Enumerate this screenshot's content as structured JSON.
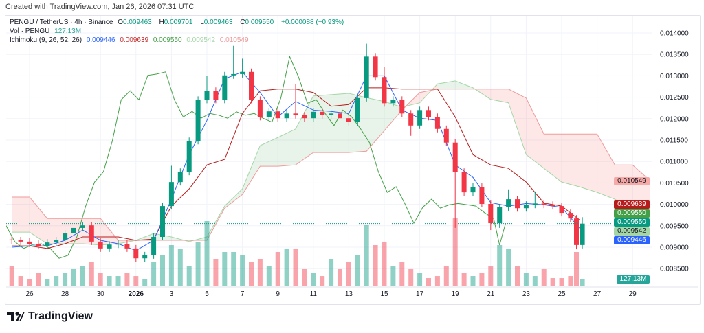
{
  "header": {
    "created": "Created with TradingView.com, Jan 26, 2026 07:31 UTC"
  },
  "legend": {
    "symbol": "PENGU / TetherUS · 4h · Binance",
    "o_label": "O",
    "o": "0.009463",
    "h_label": "H",
    "h": "0.009701",
    "l_label": "L",
    "l": "0.009463",
    "c_label": "C",
    "c": "0.009550",
    "change": "+0.000088 (+0.93%)",
    "vol_label": "Vol · PENGU",
    "vol": "127.13M",
    "ichimoku_label": "Ichimoku (9, 26, 52, 26)",
    "ichimoku_values": [
      "0.009446",
      "0.009639",
      "0.009550",
      "0.009542",
      "0.010549"
    ]
  },
  "footer": {
    "brand": "TradingView"
  },
  "colors": {
    "up": "#089981",
    "down": "#f23645",
    "tenkan": "#2962ff",
    "kijun": "#b71c1c",
    "chikou": "#43a047",
    "span_a": "#a5d6a7",
    "span_b": "#ef9a9a"
  },
  "chart_data": {
    "type": "candlestick",
    "title": "PENGU / TetherUS · 4h · Binance",
    "ylim": [
      0.0082,
      0.0142
    ],
    "y_ticks": [
      "0.014000",
      "0.013500",
      "0.013000",
      "0.012500",
      "0.012000",
      "0.011500",
      "0.011000",
      "0.010500",
      "0.010000",
      "0.009500",
      "0.009000",
      "0.008500"
    ],
    "x_ticks": [
      [
        "2025-12-26",
        "26"
      ],
      [
        "2025-12-28",
        "28"
      ],
      [
        "2025-12-30",
        "30"
      ],
      [
        "2026-01-01",
        "2026"
      ],
      [
        "2026-01-03",
        "3"
      ],
      [
        "2026-01-05",
        "5"
      ],
      [
        "2026-01-07",
        "7"
      ],
      [
        "2026-01-09",
        "9"
      ],
      [
        "2026-01-11",
        "11"
      ],
      [
        "2026-01-13",
        "13"
      ],
      [
        "2026-01-15",
        "15"
      ],
      [
        "2026-01-17",
        "17"
      ],
      [
        "2026-01-19",
        "19"
      ],
      [
        "2026-01-21",
        "21"
      ],
      [
        "2026-01-23",
        "23"
      ],
      [
        "2026-01-25",
        "25"
      ],
      [
        "2026-01-27",
        "27"
      ],
      [
        "2026-01-29",
        "29"
      ]
    ],
    "grid": true,
    "first_open": 0.00918,
    "candles": [
      {
        "t": "2025-12-25T00",
        "c": 0.00916,
        "v": 381
      },
      {
        "t": "2025-12-25T12",
        "c": 0.00913,
        "v": 190
      },
      {
        "t": "2025-12-26T00",
        "c": 0.00908,
        "v": 127
      },
      {
        "t": "2025-12-26T12",
        "c": 0.00903,
        "v": 254
      },
      {
        "t": "2025-12-27T00",
        "c": 0.00911,
        "v": 127
      },
      {
        "t": "2025-12-27T12",
        "c": 0.00916,
        "v": 190
      },
      {
        "t": "2025-12-28T00",
        "c": 0.00932,
        "v": 254
      },
      {
        "t": "2025-12-28T12",
        "c": 0.00945,
        "v": 318
      },
      {
        "t": "2025-12-29T00",
        "c": 0.00951,
        "v": 381
      },
      {
        "t": "2025-12-29T12",
        "c": 0.00913,
        "v": 445
      },
      {
        "t": "2025-12-30T00",
        "c": 0.00897,
        "v": 254
      },
      {
        "t": "2025-12-30T12",
        "c": 0.00906,
        "v": 190
      },
      {
        "t": "2025-12-31T00",
        "c": 0.00908,
        "v": 190
      },
      {
        "t": "2025-12-31T12",
        "c": 0.00897,
        "v": 254
      },
      {
        "t": "2026-01-01T00",
        "c": 0.00874,
        "v": 190
      },
      {
        "t": "2026-01-01T12",
        "c": 0.00881,
        "v": 127
      },
      {
        "t": "2026-01-02T00",
        "c": 0.00924,
        "v": 445
      },
      {
        "t": "2026-01-02T12",
        "c": 0.00996,
        "v": 572
      },
      {
        "t": "2026-01-03T00",
        "c": 0.01052,
        "h": 0.0109,
        "v": 762
      },
      {
        "t": "2026-01-03T12",
        "c": 0.01076,
        "v": 699
      },
      {
        "t": "2026-01-04T00",
        "c": 0.01148,
        "v": 381
      },
      {
        "t": "2026-01-04T12",
        "c": 0.01244,
        "v": 826
      },
      {
        "t": "2026-01-05T00",
        "c": 0.01265,
        "h": 0.013,
        "v": 1207
      },
      {
        "t": "2026-01-05T12",
        "c": 0.01244,
        "v": 508
      },
      {
        "t": "2026-01-06T00",
        "c": 0.01301,
        "v": 635
      },
      {
        "t": "2026-01-06T12",
        "c": 0.01304,
        "h": 0.0137,
        "v": 635
      },
      {
        "t": "2026-01-07T00",
        "c": 0.01309,
        "h": 0.0134,
        "v": 572
      },
      {
        "t": "2026-01-07T12",
        "c": 0.01244,
        "v": 445
      },
      {
        "t": "2026-01-08T00",
        "c": 0.01204,
        "v": 508
      },
      {
        "t": "2026-01-08T12",
        "c": 0.01217,
        "v": 381
      },
      {
        "t": "2026-01-09T00",
        "c": 0.01201,
        "v": 635
      },
      {
        "t": "2026-01-09T12",
        "c": 0.01212,
        "v": 699
      },
      {
        "t": "2026-01-10T00",
        "c": 0.01208,
        "h": 0.0128,
        "v": 699
      },
      {
        "t": "2026-01-10T12",
        "c": 0.01201,
        "v": 318
      },
      {
        "t": "2026-01-11T00",
        "c": 0.01216,
        "v": 254
      },
      {
        "t": "2026-01-11T12",
        "c": 0.01208,
        "v": 190
      },
      {
        "t": "2026-01-12T00",
        "c": 0.01212,
        "v": 508
      },
      {
        "t": "2026-01-12T12",
        "c": 0.01201,
        "l": 0.0117,
        "v": 318
      },
      {
        "t": "2026-01-13T00",
        "c": 0.01192,
        "v": 445
      },
      {
        "t": "2026-01-13T12",
        "c": 0.01248,
        "v": 572
      },
      {
        "t": "2026-01-14T00",
        "c": 0.01345,
        "h": 0.01375,
        "v": 1143
      },
      {
        "t": "2026-01-14T12",
        "c": 0.01297,
        "v": 762
      },
      {
        "t": "2026-01-15T00",
        "c": 0.01236,
        "h": 0.0132,
        "v": 826
      },
      {
        "t": "2026-01-15T12",
        "c": 0.01244,
        "v": 381
      },
      {
        "t": "2026-01-16T00",
        "c": 0.01212,
        "v": 445
      },
      {
        "t": "2026-01-16T12",
        "c": 0.01184,
        "l": 0.0116,
        "v": 318
      },
      {
        "t": "2026-01-17T00",
        "c": 0.0122,
        "v": 254
      },
      {
        "t": "2026-01-17T12",
        "c": 0.01204,
        "v": 152
      },
      {
        "t": "2026-01-18T00",
        "c": 0.01176,
        "v": 190
      },
      {
        "t": "2026-01-18T12",
        "c": 0.01144,
        "v": 381
      },
      {
        "t": "2026-01-19T00",
        "c": 0.01076,
        "l": 0.00945,
        "v": 1270
      },
      {
        "t": "2026-01-19T12",
        "c": 0.01028,
        "v": 254
      },
      {
        "t": "2026-01-20T00",
        "c": 0.01041,
        "v": 190
      },
      {
        "t": "2026-01-20T12",
        "c": 0.01001,
        "v": 254
      },
      {
        "t": "2026-01-21T00",
        "c": 0.00956,
        "l": 0.0094,
        "v": 381
      },
      {
        "t": "2026-01-21T12",
        "c": 0.00993,
        "l": 0.00945,
        "v": 762
      },
      {
        "t": "2026-01-22T00",
        "c": 0.01012,
        "h": 0.01035,
        "v": 699
      },
      {
        "t": "2026-01-22T12",
        "c": 0.00991,
        "v": 381
      },
      {
        "t": "2026-01-23T00",
        "c": 0.00999,
        "v": 254
      },
      {
        "t": "2026-01-23T12",
        "c": 0.01002,
        "h": 0.0103,
        "v": 190
      },
      {
        "t": "2026-01-24T00",
        "c": 0.00999,
        "v": 318
      },
      {
        "t": "2026-01-24T12",
        "c": 0.00996,
        "v": 152
      },
      {
        "t": "2026-01-25T00",
        "c": 0.0098,
        "v": 152
      },
      {
        "t": "2026-01-25T12",
        "c": 0.00967,
        "v": 190
      },
      {
        "t": "2026-01-25T20",
        "c": 0.00905,
        "l": 0.00895,
        "v": 635
      },
      {
        "t": "2026-01-26T04",
        "c": 0.00955,
        "h": 0.009701,
        "v": 127.13
      }
    ],
    "tenkan": [
      [
        "2025-12-25",
        0.009
      ],
      [
        "2025-12-26",
        0.00903
      ],
      [
        "2025-12-27",
        0.00903
      ],
      [
        "2025-12-28",
        0.00916
      ],
      [
        "2025-12-29",
        0.0094
      ],
      [
        "2025-12-30",
        0.00916
      ],
      [
        "2025-12-31",
        0.00908
      ],
      [
        "2026-01-01",
        0.00892
      ],
      [
        "2026-01-02",
        0.00916
      ],
      [
        "2026-01-03",
        0.01012
      ],
      [
        "2026-01-04",
        0.01116
      ],
      [
        "2026-01-05",
        0.01196
      ],
      [
        "2026-01-06",
        0.01293
      ],
      [
        "2026-01-07",
        0.01309
      ],
      [
        "2026-01-08",
        0.01261
      ],
      [
        "2026-01-09",
        0.01204
      ],
      [
        "2026-01-10",
        0.0124
      ],
      [
        "2026-01-11",
        0.0122
      ],
      [
        "2026-01-12",
        0.01217
      ],
      [
        "2026-01-13",
        0.01212
      ],
      [
        "2026-01-14",
        0.013
      ],
      [
        "2026-01-15",
        0.013
      ],
      [
        "2026-01-16",
        0.0122
      ],
      [
        "2026-01-17",
        0.01201
      ],
      [
        "2026-01-18",
        0.01196
      ],
      [
        "2026-01-19",
        0.01092
      ],
      [
        "2026-01-20",
        0.01063
      ],
      [
        "2026-01-21",
        0.01004
      ],
      [
        "2026-01-22",
        0.00996
      ],
      [
        "2026-01-23",
        0.01002
      ],
      [
        "2026-01-24",
        0.00999
      ],
      [
        "2026-01-25",
        0.00993
      ],
      [
        "2026-01-26",
        0.009446
      ]
    ],
    "kijun": [
      [
        "2025-12-25",
        0.00903
      ],
      [
        "2025-12-26",
        0.00903
      ],
      [
        "2025-12-27",
        0.00897
      ],
      [
        "2025-12-28",
        0.00908
      ],
      [
        "2025-12-29",
        0.00924
      ],
      [
        "2025-12-30",
        0.00924
      ],
      [
        "2025-12-31",
        0.00924
      ],
      [
        "2026-01-01",
        0.00916
      ],
      [
        "2026-01-02",
        0.00919
      ],
      [
        "2026-01-03",
        0.00996
      ],
      [
        "2026-01-04",
        0.01036
      ],
      [
        "2026-01-05",
        0.01092
      ],
      [
        "2026-01-06",
        0.01105
      ],
      [
        "2026-01-07",
        0.01212
      ],
      [
        "2026-01-08",
        0.01265
      ],
      [
        "2026-01-09",
        0.01269
      ],
      [
        "2026-01-10",
        0.01269
      ],
      [
        "2026-01-11",
        0.01261
      ],
      [
        "2026-01-12",
        0.01229
      ],
      [
        "2026-01-13",
        0.01233
      ],
      [
        "2026-01-14",
        0.01272
      ],
      [
        "2026-01-15",
        0.01272
      ],
      [
        "2026-01-16",
        0.01269
      ],
      [
        "2026-01-17",
        0.01269
      ],
      [
        "2026-01-18",
        0.01269
      ],
      [
        "2026-01-19",
        0.01204
      ],
      [
        "2026-01-20",
        0.01116
      ],
      [
        "2026-01-21",
        0.01092
      ],
      [
        "2026-01-22",
        0.01084
      ],
      [
        "2026-01-23",
        0.01052
      ],
      [
        "2026-01-24",
        0.01003
      ],
      [
        "2026-01-25",
        0.00996
      ],
      [
        "2026-01-26",
        0.009639
      ]
    ],
    "span_a": [
      [
        "2025-12-25",
        0.00935
      ],
      [
        "2025-12-26",
        0.00935
      ],
      [
        "2025-12-27",
        0.00908
      ],
      [
        "2025-12-28",
        0.00908
      ],
      [
        "2025-12-29",
        0.00908
      ],
      [
        "2025-12-30",
        0.00905
      ],
      [
        "2025-12-31",
        0.00908
      ],
      [
        "2026-01-01",
        0.00916
      ],
      [
        "2026-01-02",
        0.00932
      ],
      [
        "2026-01-03",
        0.00924
      ],
      [
        "2026-01-04",
        0.00913
      ],
      [
        "2026-01-05",
        0.00924
      ],
      [
        "2026-01-06",
        0.00996
      ],
      [
        "2026-01-07",
        0.01036
      ],
      [
        "2026-01-08",
        0.01137
      ],
      [
        "2026-01-09",
        0.01156
      ],
      [
        "2026-01-10",
        0.01176
      ],
      [
        "2026-01-11",
        0.01253
      ],
      [
        "2026-01-12",
        0.01256
      ],
      [
        "2026-01-13",
        0.01259
      ],
      [
        "2026-01-14",
        0.01249
      ],
      [
        "2026-01-15",
        0.0124
      ],
      [
        "2026-01-16",
        0.01227
      ],
      [
        "2026-01-17",
        0.01237
      ],
      [
        "2026-01-18",
        0.01281
      ],
      [
        "2026-01-19",
        0.01288
      ],
      [
        "2026-01-20",
        0.01272
      ],
      [
        "2026-01-21",
        0.01245
      ],
      [
        "2026-01-22",
        0.01237
      ],
      [
        "2026-01-23",
        0.01116
      ],
      [
        "2026-01-24",
        0.01084
      ],
      [
        "2026-01-25",
        0.01052
      ],
      [
        "2026-01-26",
        0.01041
      ],
      [
        "2026-01-27",
        0.01028
      ],
      [
        "2026-01-28",
        0.01012
      ],
      [
        "2026-01-29",
        0.00988
      ],
      [
        "2026-01-30",
        0.009542
      ]
    ],
    "span_b": [
      [
        "2025-12-25",
        0.01017
      ],
      [
        "2025-12-26",
        0.01017
      ],
      [
        "2025-12-27",
        0.00967
      ],
      [
        "2025-12-28",
        0.00967
      ],
      [
        "2025-12-29",
        0.00967
      ],
      [
        "2025-12-30",
        0.00967
      ],
      [
        "2025-12-31",
        0.00916
      ],
      [
        "2026-01-01",
        0.00916
      ],
      [
        "2026-01-02",
        0.00916
      ],
      [
        "2026-01-03",
        0.00916
      ],
      [
        "2026-01-04",
        0.00916
      ],
      [
        "2026-01-05",
        0.00916
      ],
      [
        "2026-01-06",
        0.00991
      ],
      [
        "2026-01-07",
        0.01023
      ],
      [
        "2026-01-08",
        0.01089
      ],
      [
        "2026-01-09",
        0.01089
      ],
      [
        "2026-01-10",
        0.01092
      ],
      [
        "2026-01-11",
        0.01121
      ],
      [
        "2026-01-12",
        0.01121
      ],
      [
        "2026-01-13",
        0.01121
      ],
      [
        "2026-01-14",
        0.01124
      ],
      [
        "2026-01-15",
        0.01172
      ],
      [
        "2026-01-16",
        0.0122
      ],
      [
        "2026-01-17",
        0.01261
      ],
      [
        "2026-01-18",
        0.01269
      ],
      [
        "2026-01-19",
        0.01269
      ],
      [
        "2026-01-20",
        0.01269
      ],
      [
        "2026-01-21",
        0.01269
      ],
      [
        "2026-01-22",
        0.01269
      ],
      [
        "2026-01-23",
        0.01248
      ],
      [
        "2026-01-24",
        0.01164
      ],
      [
        "2026-01-25",
        0.01164
      ],
      [
        "2026-01-26",
        0.01164
      ],
      [
        "2026-01-27",
        0.01164
      ],
      [
        "2026-01-28",
        0.01092
      ],
      [
        "2026-01-29",
        0.01092
      ],
      [
        "2026-01-30",
        0.010549
      ]
    ],
    "price_labels": [
      {
        "text": "0.010549",
        "bg": "#f7a9a7",
        "fg": "#131722"
      },
      {
        "text": "0.009639",
        "bg": "#b71c1c",
        "fg": "#ffffff"
      },
      {
        "text": "0.009550",
        "bg": "#43a047",
        "fg": "#ffffff"
      },
      {
        "text": "0.009550",
        "bg": "#089981",
        "fg": "#ffffff"
      },
      {
        "text": "0.009542",
        "bg": "#a5d6a7",
        "fg": "#131722"
      },
      {
        "text": "0.009446",
        "bg": "#2962ff",
        "fg": "#ffffff"
      }
    ],
    "volume_label": {
      "text": "127.13M",
      "bg": "#26a69a",
      "fg": "#ffffff"
    },
    "current_price": 0.00955
  }
}
